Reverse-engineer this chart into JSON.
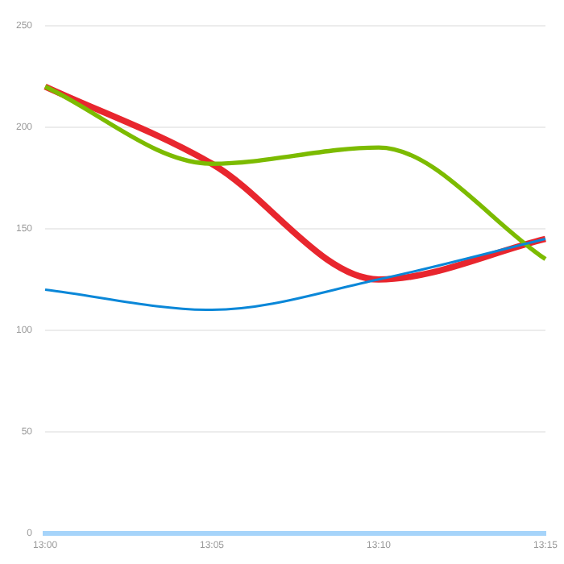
{
  "chart_data": {
    "type": "line",
    "categories": [
      "13:00",
      "13:05",
      "13:10",
      "13:15"
    ],
    "series": [
      {
        "color": "#e8262e",
        "values": [
          220,
          182,
          125,
          145
        ]
      },
      {
        "color": "#7cbb00",
        "values": [
          220,
          182,
          190,
          135
        ]
      },
      {
        "color": "#0a87d8",
        "values": [
          120,
          110,
          125,
          145
        ]
      }
    ],
    "ylim": [
      0,
      250
    ],
    "yticks": [
      0,
      50,
      100,
      150,
      200,
      250
    ],
    "grid": "y",
    "legend": false,
    "marker": "none",
    "line_style": "solid"
  }
}
